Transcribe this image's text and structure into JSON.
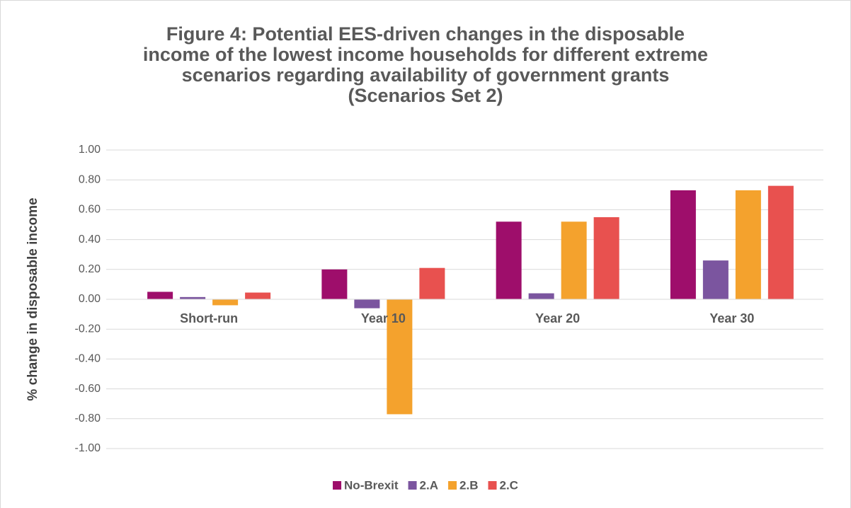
{
  "chart_data": {
    "type": "bar",
    "title": [
      "Figure 4: Potential EES-driven changes in the disposable",
      "income of the lowest income households for different extreme",
      "scenarios regarding availability of government grants",
      "(Scenarios Set 2)"
    ],
    "ylabel": "% change in disposable income",
    "categories": [
      "Short-run",
      "Year 10",
      "Year 20",
      "Year 30"
    ],
    "series": [
      {
        "name": "No-Brexit",
        "color": "#9e0e6b",
        "values": [
          0.05,
          0.2,
          0.52,
          0.73
        ]
      },
      {
        "name": "2.A",
        "color": "#7b559f",
        "values": [
          0.015,
          -0.06,
          0.04,
          0.26
        ]
      },
      {
        "name": "2.B",
        "color": "#f4a22d",
        "values": [
          -0.04,
          -0.77,
          0.52,
          0.73
        ]
      },
      {
        "name": "2.C",
        "color": "#e8514f",
        "values": [
          0.045,
          0.21,
          0.55,
          0.76
        ]
      }
    ],
    "ylim": [
      -1,
      1
    ],
    "yticks": [
      {
        "value": 1,
        "label": "1.00"
      },
      {
        "value": 0.8,
        "label": "0.80"
      },
      {
        "value": 0.6,
        "label": "0.60"
      },
      {
        "value": 0.4,
        "label": "0.40"
      },
      {
        "value": 0.2,
        "label": "0.20"
      },
      {
        "value": 0,
        "label": "0.00"
      },
      {
        "value": -0.2,
        "label": "-0.20"
      },
      {
        "value": -0.4,
        "label": "-0.40"
      },
      {
        "value": -0.6,
        "label": "-0.60"
      },
      {
        "value": -0.8,
        "label": "-0.80"
      },
      {
        "value": -1,
        "label": "-1.00"
      }
    ],
    "grid": true,
    "legend": "bottom"
  }
}
